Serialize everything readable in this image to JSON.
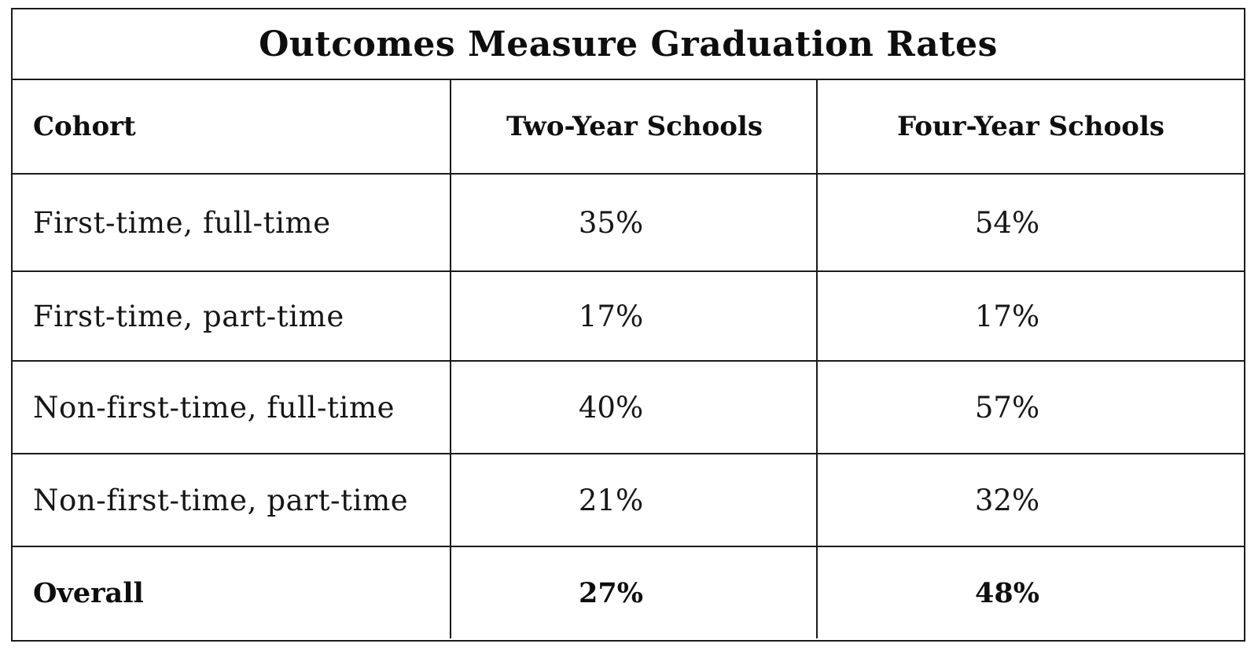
{
  "title": "Outcomes Measure Graduation Rates",
  "headers": [
    "Cohort",
    "Two-Year Schools",
    "Four-Year Schools"
  ],
  "rows": [
    {
      "cohort": "First-time, full-time",
      "two_year": "35%",
      "four_year": "54%"
    },
    {
      "cohort": "First-time, part-time",
      "two_year": "17%",
      "four_year": "17%"
    },
    {
      "cohort": "Non-first-time, full-time",
      "two_year": "40%",
      "four_year": "57%"
    },
    {
      "cohort": "Non-first-time, part-time",
      "two_year": "21%",
      "four_year": "32%"
    },
    {
      "cohort": "Overall",
      "two_year": "27%",
      "four_year": "48%"
    }
  ],
  "chart_data": {
    "type": "table",
    "title": "Outcomes Measure Graduation Rates",
    "columns": [
      "Cohort",
      "Two-Year Schools",
      "Four-Year Schools"
    ],
    "categories": [
      "First-time, full-time",
      "First-time, part-time",
      "Non-first-time, full-time",
      "Non-first-time, part-time",
      "Overall"
    ],
    "series": [
      {
        "name": "Two-Year Schools",
        "values": [
          35,
          17,
          40,
          21,
          27
        ]
      },
      {
        "name": "Four-Year Schools",
        "values": [
          54,
          17,
          57,
          32,
          48
        ]
      }
    ],
    "unit": "%"
  }
}
